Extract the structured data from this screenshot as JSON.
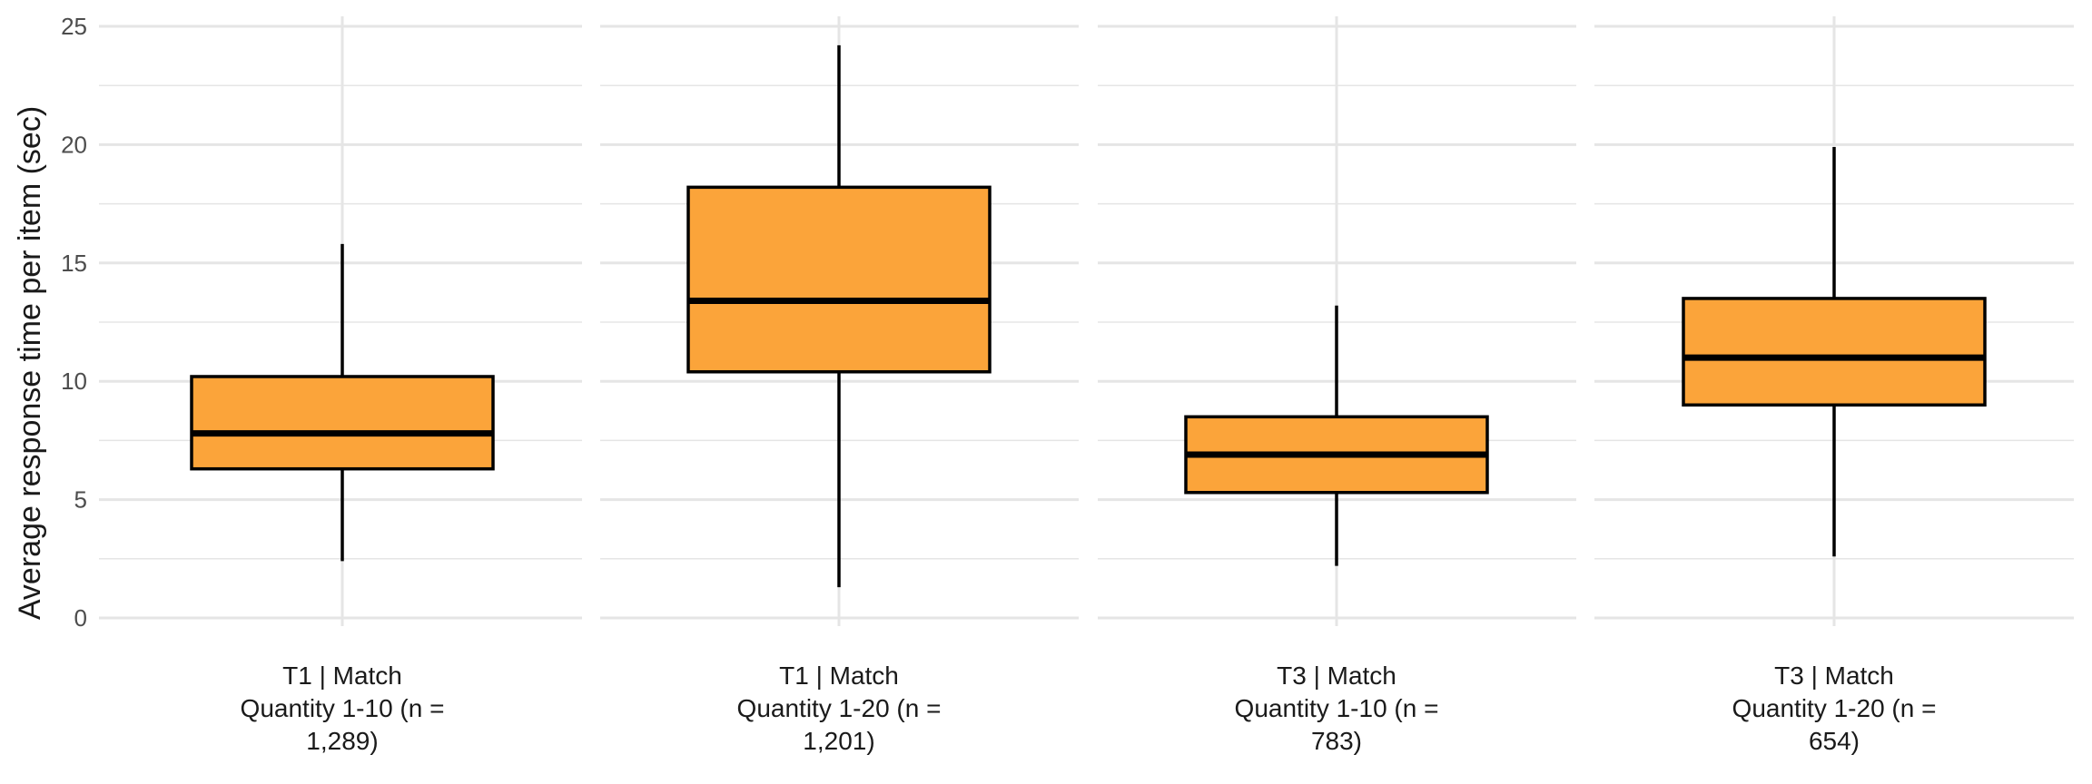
{
  "chart_data": {
    "type": "boxplot",
    "ylabel": "Average response time per item (sec)",
    "ylim": [
      0,
      25
    ],
    "yticks": [
      "0",
      "5",
      "10",
      "15",
      "20",
      "25"
    ],
    "grid": true,
    "box_color": "#FBA43A",
    "line_color": "#000000",
    "grid_color": "#E5E5E5",
    "panels": [
      {
        "label_lines": [
          "T1 | Match",
          "Quantity 1-10 (n =",
          "1,289)"
        ],
        "whisker_low": 2.4,
        "q1": 6.3,
        "median": 7.8,
        "q3": 10.2,
        "whisker_high": 15.8
      },
      {
        "label_lines": [
          "T1 | Match",
          "Quantity 1-20 (n =",
          "1,201)"
        ],
        "whisker_low": 1.3,
        "q1": 10.4,
        "median": 13.4,
        "q3": 18.2,
        "whisker_high": 24.2
      },
      {
        "label_lines": [
          "T3 | Match",
          "Quantity 1-10 (n =",
          "783)"
        ],
        "whisker_low": 2.2,
        "q1": 5.3,
        "median": 6.9,
        "q3": 8.5,
        "whisker_high": 13.2
      },
      {
        "label_lines": [
          "T3 | Match",
          "Quantity 1-20 (n =",
          "654)"
        ],
        "whisker_low": 2.6,
        "q1": 9.0,
        "median": 11.0,
        "q3": 13.5,
        "whisker_high": 19.9
      }
    ]
  }
}
